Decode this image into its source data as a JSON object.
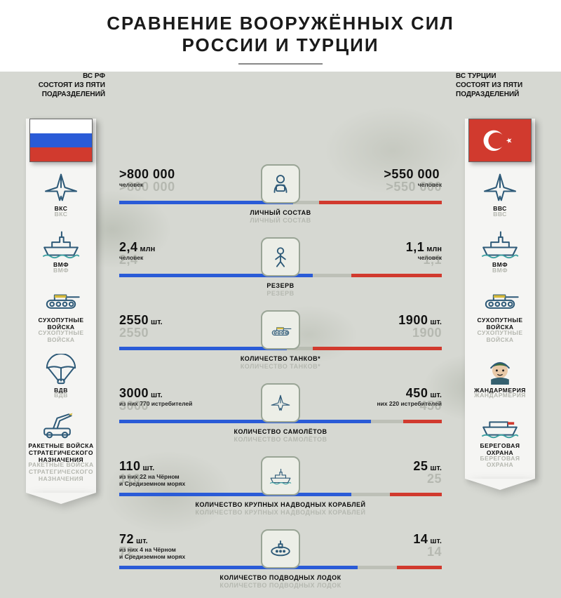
{
  "title_line1": "СРАВНЕНИЕ ВООРУЖЁННЫХ СИЛ",
  "title_line2": "РОССИИ И ТУРЦИИ",
  "colors": {
    "russia": "#2a5bd7",
    "turkey": "#d13a2e",
    "icon_stroke": "#2e5a78",
    "icon_accent_yellow": "#d6b93a",
    "icon_accent_teal": "#3aa0a0",
    "banner_bg": "#f5f5f3",
    "camo_bg": "#d6d8d2"
  },
  "left": {
    "header_l1": "ВС РФ",
    "header_l2": "СОСТОЯТ ИЗ ПЯТИ",
    "header_l3": "ПОДРАЗДЕЛЕНИЙ",
    "flag": {
      "stripes": [
        "#ffffff",
        "#2a5bd7",
        "#d13a2e"
      ]
    },
    "branches": [
      {
        "label": "ВКС",
        "icon": "jet"
      },
      {
        "label": "ВМФ",
        "icon": "warship"
      },
      {
        "label": "СУХОПУТНЫЕ\nВОЙСКА",
        "icon": "tank"
      },
      {
        "label": "ВДВ",
        "icon": "parachute"
      },
      {
        "label": "РАКЕТНЫЕ ВОЙСКА\nСТРАТЕГИЧЕСКОГО\nНАЗНАЧЕНИЯ",
        "icon": "missile"
      }
    ]
  },
  "right": {
    "header_l1": "ВС ТУРЦИИ",
    "header_l2": "СОСТОЯТ ИЗ ПЯТИ",
    "header_l3": "ПОДРАЗДЕЛЕНИЙ",
    "flag": {
      "bg": "#d13a2e",
      "symbol": "#ffffff"
    },
    "branches": [
      {
        "label": "ВВС",
        "icon": "jet"
      },
      {
        "label": "ВМФ",
        "icon": "warship"
      },
      {
        "label": "СУХОПУТНЫЕ\nВОЙСКА",
        "icon": "tank"
      },
      {
        "label": "ЖАНДАРМЕРИЯ",
        "icon": "soldier"
      },
      {
        "label": "БЕРЕГОВАЯ\nОХРАНА",
        "icon": "coastguard"
      }
    ]
  },
  "rows": [
    {
      "label": "ЛИЧНЫЙ СОСТАВ",
      "icon": "personnel",
      "left": {
        "big": ">800 000",
        "unit": "",
        "sub": "человек"
      },
      "right": {
        "big": ">550 000",
        "unit": "",
        "sub": "человек"
      },
      "blue_pct": 54,
      "red_pct": 38
    },
    {
      "label": "РЕЗЕРВ",
      "icon": "reserve",
      "left": {
        "big": "2,4",
        "unit": "млн",
        "sub": "человек"
      },
      "right": {
        "big": "1,1",
        "unit": "млн",
        "sub": "человек"
      },
      "blue_pct": 60,
      "red_pct": 28
    },
    {
      "label": "КОЛИЧЕСТВО ТАНКОВ*",
      "icon": "tank",
      "left": {
        "big": "2550",
        "unit": "шт.",
        "sub": ""
      },
      "right": {
        "big": "1900",
        "unit": "шт.",
        "sub": ""
      },
      "blue_pct": 52,
      "red_pct": 40
    },
    {
      "label": "КОЛИЧЕСТВО САМОЛЁТОВ",
      "icon": "jet",
      "left": {
        "big": "3000",
        "unit": "шт.",
        "sub": "из них 770 истребителей"
      },
      "right": {
        "big": "450",
        "unit": "шт.",
        "sub": "них 220 истребителей"
      },
      "blue_pct": 78,
      "red_pct": 12
    },
    {
      "label": "КОЛИЧЕСТВО КРУПНЫХ НАДВОДНЫХ КОРАБЛЕЙ",
      "icon": "warship",
      "left": {
        "big": "110",
        "unit": "шт.",
        "sub": "из них 22 на Чёрном\nи Средиземном морях"
      },
      "right": {
        "big": "25",
        "unit": "шт.",
        "sub": ""
      },
      "blue_pct": 72,
      "red_pct": 16
    },
    {
      "label": "КОЛИЧЕСТВО ПОДВОДНЫХ ЛОДОК",
      "icon": "submarine",
      "left": {
        "big": "72",
        "unit": "шт.",
        "sub": "из них 4 на Чёрном\nи Средиземном морях"
      },
      "right": {
        "big": "14",
        "unit": "шт.",
        "sub": ""
      },
      "blue_pct": 74,
      "red_pct": 14
    }
  ]
}
